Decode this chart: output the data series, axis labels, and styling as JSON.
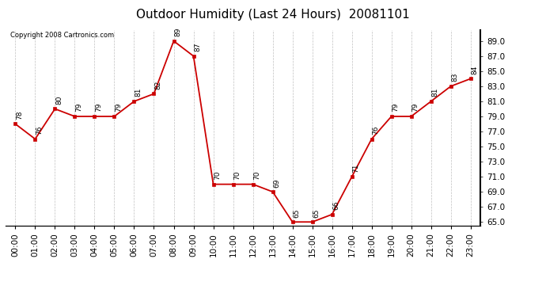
{
  "title": "Outdoor Humidity (Last 24 Hours)  20081101",
  "copyright_text": "Copyright 2008 Cartronics.com",
  "hours": [
    0,
    1,
    2,
    3,
    4,
    5,
    6,
    7,
    8,
    9,
    10,
    11,
    12,
    13,
    14,
    15,
    16,
    17,
    18,
    19,
    20,
    21,
    22,
    23
  ],
  "values": [
    78,
    76,
    80,
    79,
    79,
    79,
    81,
    82,
    89,
    87,
    70,
    70,
    70,
    69,
    65,
    65,
    66,
    71,
    76,
    79,
    79,
    81,
    83,
    84
  ],
  "xlabels": [
    "00:00",
    "01:00",
    "02:00",
    "03:00",
    "04:00",
    "05:00",
    "06:00",
    "07:00",
    "08:00",
    "09:00",
    "10:00",
    "11:00",
    "12:00",
    "13:00",
    "14:00",
    "15:00",
    "16:00",
    "17:00",
    "18:00",
    "19:00",
    "20:00",
    "21:00",
    "22:00",
    "23:00"
  ],
  "ylim": [
    64.5,
    90.5
  ],
  "yticks": [
    65.0,
    67.0,
    69.0,
    71.0,
    73.0,
    75.0,
    77.0,
    79.0,
    81.0,
    83.0,
    85.0,
    87.0,
    89.0
  ],
  "line_color": "#cc0000",
  "marker_color": "#cc0000",
  "bg_color": "#ffffff",
  "grid_color": "#c0c0c0",
  "title_fontsize": 11,
  "label_fontsize": 7.5,
  "annotation_fontsize": 6.5
}
